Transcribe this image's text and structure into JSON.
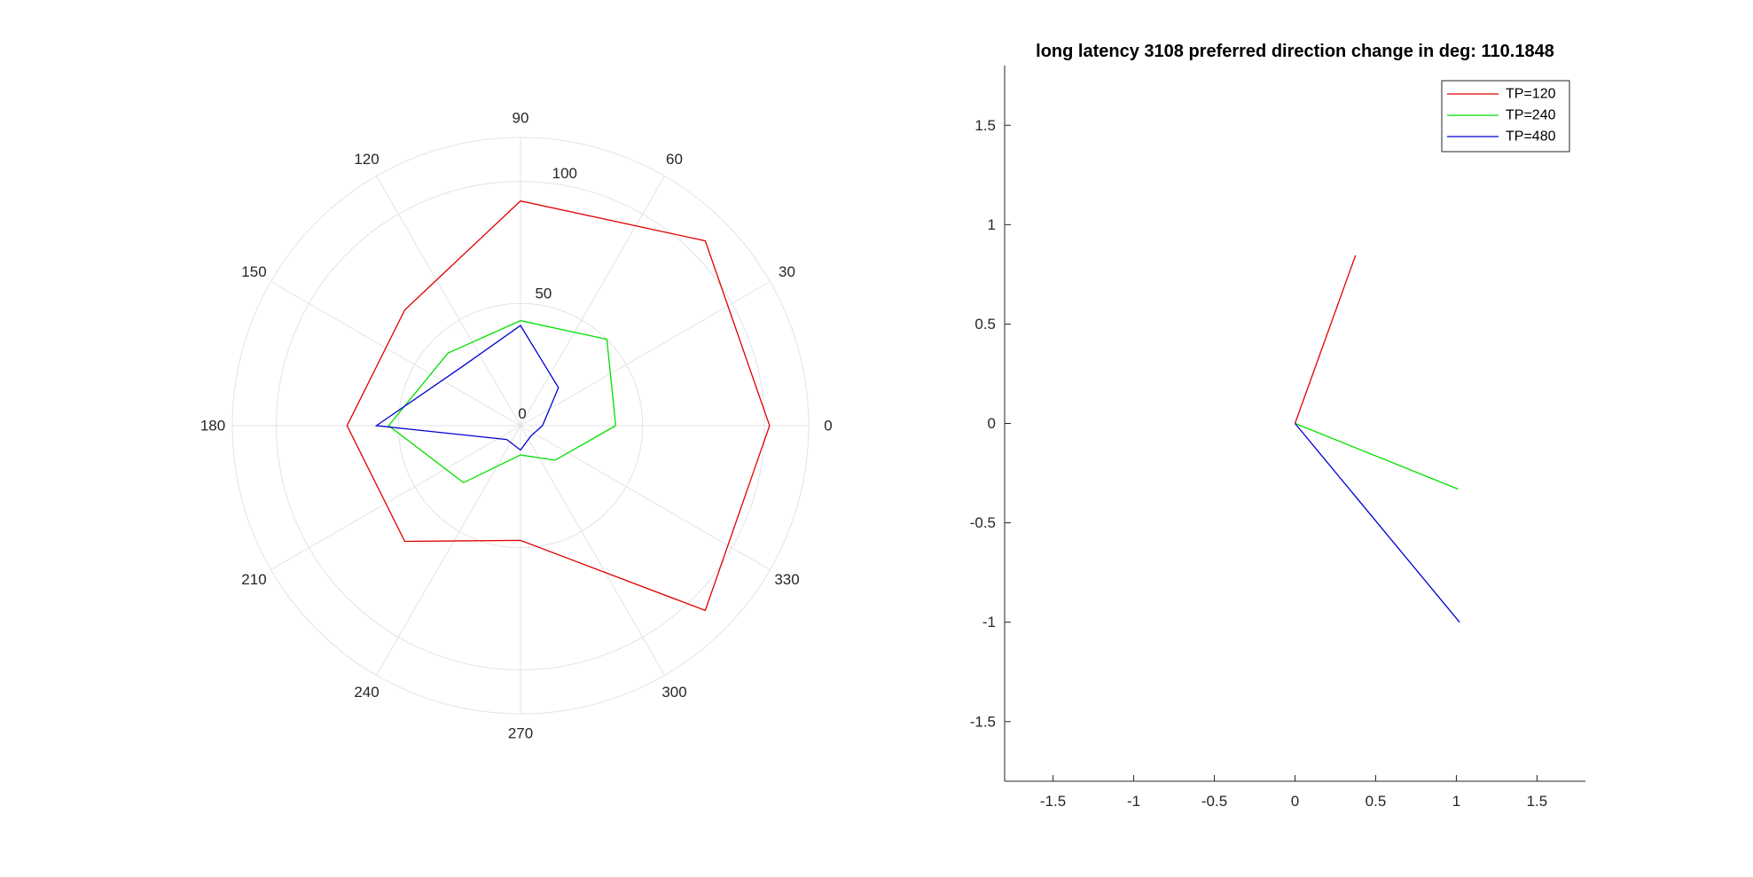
{
  "chart_data": [
    {
      "type": "polar",
      "title": "",
      "theta_unit": "deg",
      "theta_ticks": [
        0,
        30,
        60,
        90,
        120,
        150,
        180,
        210,
        240,
        270,
        300,
        330
      ],
      "theta_tick_labels": [
        "0",
        "30",
        "60",
        "90",
        "120",
        "150",
        "180",
        "210",
        "240",
        "270",
        "300",
        "330"
      ],
      "r_ticks": [
        0,
        50,
        100
      ],
      "r_tick_labels": [
        "0",
        "50",
        "100"
      ],
      "rlim": [
        0,
        118
      ],
      "grid": true,
      "theta": [
        0,
        45,
        90,
        135,
        180,
        225,
        270,
        315,
        360
      ],
      "series": [
        {
          "name": "TP=120",
          "color": "#e00000",
          "r": [
            102,
            107,
            92,
            67,
            71,
            67,
            47,
            107,
            102
          ]
        },
        {
          "name": "TP=240",
          "color": "#00e000",
          "r": [
            39,
            50,
            43,
            42,
            54,
            33,
            12,
            20,
            39
          ]
        },
        {
          "name": "TP=480",
          "color": "#0000d0",
          "r": [
            9,
            22,
            41,
            34,
            59,
            8,
            10,
            6,
            9
          ]
        }
      ]
    },
    {
      "type": "line",
      "title": "long latency 3108 preferred direction change in deg: 110.1848",
      "xlabel": "",
      "ylabel": "",
      "xlim": [
        -1.8,
        1.8
      ],
      "ylim": [
        -1.8,
        1.8
      ],
      "xticks": [
        -1.5,
        -1,
        -0.5,
        0,
        0.5,
        1,
        1.5
      ],
      "yticks": [
        -1.5,
        -1,
        -0.5,
        0,
        0.5,
        1,
        1.5
      ],
      "xtick_labels": [
        "-1.5",
        "-1",
        "-0.5",
        "0",
        "0.5",
        "1",
        "1.5"
      ],
      "ytick_labels": [
        "-1.5",
        "-1",
        "-0.5",
        "0",
        "0.5",
        "1",
        "1.5"
      ],
      "grid": false,
      "legend_position": "top-right",
      "series": [
        {
          "name": "TP=120",
          "color": "#e00000",
          "x": [
            0,
            0.375
          ],
          "y": [
            0,
            0.845
          ]
        },
        {
          "name": "TP=240",
          "color": "#00e000",
          "x": [
            0,
            1.01
          ],
          "y": [
            0,
            -0.33
          ]
        },
        {
          "name": "TP=480",
          "color": "#0000d0",
          "x": [
            0,
            1.02
          ],
          "y": [
            0,
            -1.0
          ]
        }
      ]
    }
  ]
}
